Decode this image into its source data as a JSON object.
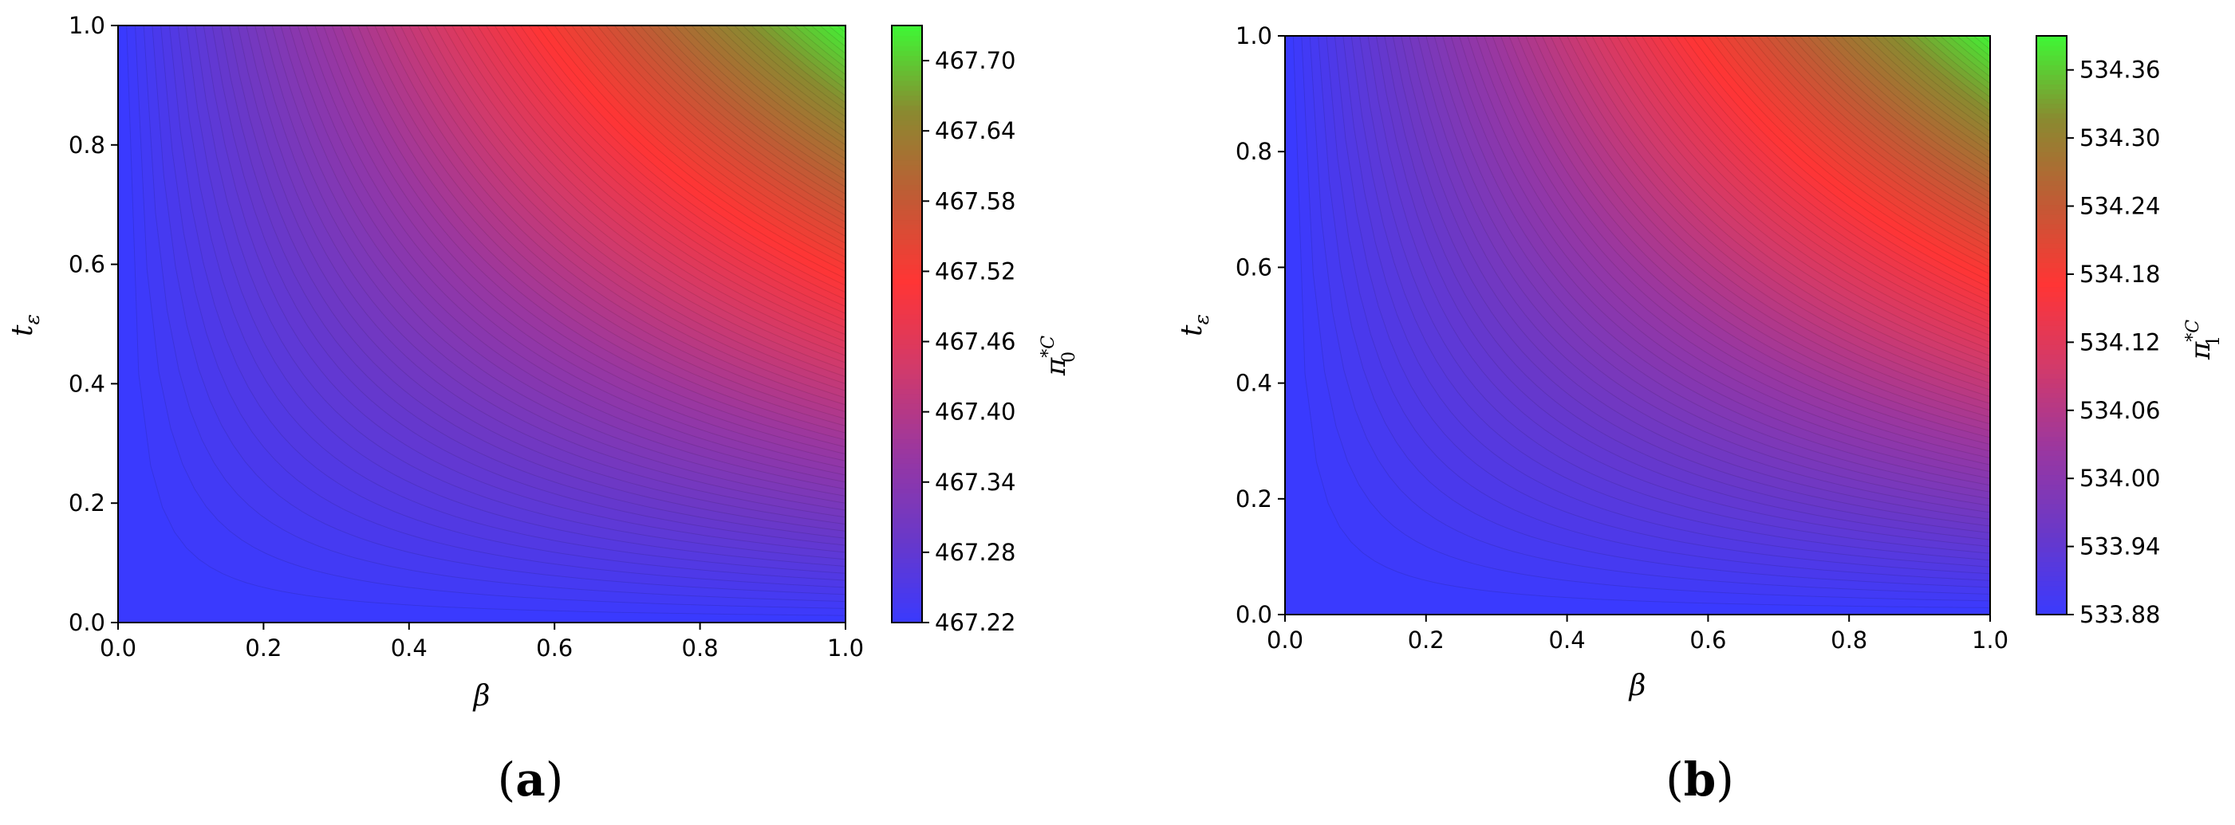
{
  "chart_data": [
    {
      "panel": "a",
      "type": "heatmap",
      "xlabel": "β",
      "ylabel_base": "t",
      "ylabel_sub": "ε",
      "colorbar_label": {
        "base": "π",
        "sup": "*C",
        "sub": "0"
      },
      "xlim": [
        0.0,
        1.0
      ],
      "ylim": [
        0.0,
        1.0
      ],
      "xticks": [
        "0.0",
        "0.2",
        "0.4",
        "0.6",
        "0.8",
        "1.0"
      ],
      "yticks": [
        "0.0",
        "0.2",
        "0.4",
        "0.6",
        "0.8",
        "1.0"
      ],
      "zlim": [
        467.22,
        467.73
      ],
      "colorbar_ticks": [
        "467.22",
        "467.28",
        "467.34",
        "467.40",
        "467.46",
        "467.52",
        "467.58",
        "467.64",
        "467.70"
      ],
      "colorbar_tick_values": [
        467.22,
        467.28,
        467.34,
        467.4,
        467.46,
        467.52,
        467.58,
        467.64,
        467.7
      ],
      "contour_levels": 85,
      "surface": "z increases with both β and tε; minimum near β=0 or tε=0, maximum at β=1, tε=1"
    },
    {
      "panel": "b",
      "type": "heatmap",
      "xlabel": "β",
      "ylabel_base": "t",
      "ylabel_sub": "ε",
      "colorbar_label": {
        "base": "π",
        "sup": "*C",
        "sub": "1"
      },
      "xlim": [
        0.0,
        1.0
      ],
      "ylim": [
        0.0,
        1.0
      ],
      "xticks": [
        "0.0",
        "0.2",
        "0.4",
        "0.6",
        "0.8",
        "1.0"
      ],
      "yticks": [
        "0.0",
        "0.2",
        "0.4",
        "0.6",
        "0.8",
        "1.0"
      ],
      "zlim": [
        533.88,
        534.39
      ],
      "colorbar_ticks": [
        "533.88",
        "533.94",
        "534.00",
        "534.06",
        "534.12",
        "534.18",
        "534.24",
        "534.30",
        "534.36"
      ],
      "colorbar_tick_values": [
        533.88,
        533.94,
        534.0,
        534.06,
        534.12,
        534.18,
        534.24,
        534.3,
        534.36
      ],
      "contour_levels": 85,
      "surface": "z increases with both β and tε; minimum near β=0 or tε=0, maximum at β=1, tε=1"
    }
  ],
  "colormap": [
    "#3a3afe",
    "#6a38c8",
    "#9a37a0",
    "#d23a6a",
    "#ff3535",
    "#c05b35",
    "#8a8a30",
    "#3ef835"
  ],
  "panel_labels": [
    {
      "open": "(",
      "letter": "a",
      "close": ")"
    },
    {
      "open": "(",
      "letter": "b",
      "close": ")"
    }
  ]
}
